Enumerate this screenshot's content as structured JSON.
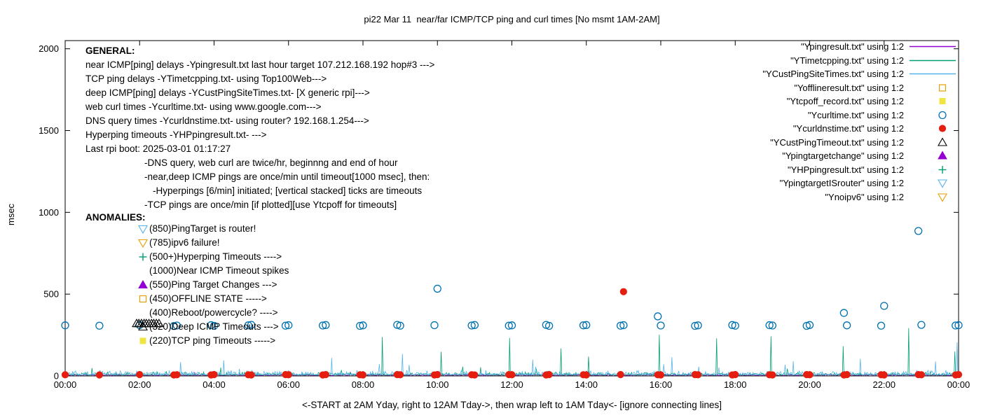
{
  "title": "pi22 Mar 11  near/far ICMP/TCP ping and curl times [No msmt 1AM-2AM]",
  "ylabel": "msec",
  "xlabel": "<-START at 2AM Yday, right to 12AM Tday->, then wrap left to 1AM Tday<- [ignore connecting lines]",
  "general": {
    "heading": "GENERAL:",
    "lines": [
      {
        "text": "near ICMP[ping] delays -Ypingresult.txt last hour target 107.212.168.192 hop#3 --->",
        "indent": 0
      },
      {
        "text": "TCP ping delays -YTimetcpping.txt- using Top100Web--->",
        "indent": 0
      },
      {
        "text": "deep ICMP[ping] delays -YCustPingSiteTimes.txt- [X generic rpi]--->",
        "indent": 0
      },
      {
        "text": "web curl times -Ycurltime.txt- using www.google.com--->",
        "indent": 0
      },
      {
        "text": "DNS query times -Ycurldnstime.txt- using router? 192.168.1.254--->",
        "indent": 0
      },
      {
        "text": "Hyperping timeouts -YHPpingresult.txt- --->",
        "indent": 0
      },
      {
        "text": "Last rpi boot: 2025-03-01 01:17:27",
        "indent": 0
      },
      {
        "text": "-DNS query, web curl are twice/hr, beginnng and end of hour",
        "indent": 1
      },
      {
        "text": "-near,deep ICMP pings are once/min until timeout[1000 msec], then:",
        "indent": 1
      },
      {
        "text": "-Hyperpings [6/min] initiated; [vertical stacked] ticks are timeouts",
        "indent": 2
      },
      {
        "text": "-TCP pings are once/min [if plotted][use Ytcpoff for timeouts]",
        "indent": 1
      }
    ]
  },
  "anomalies": {
    "heading": "ANOMALIES:",
    "items": [
      {
        "marker": "triangle-down-open",
        "color": "#56B4E9",
        "label": "(850)PingTarget is router!"
      },
      {
        "marker": "triangle-down-open",
        "color": "#E69F00",
        "label": "(785)ipv6 failure!"
      },
      {
        "marker": "plus",
        "color": "#009E73",
        "label": "(500+)Hyperping Timeouts ---->"
      },
      {
        "marker": "none",
        "color": "",
        "label": "(1000)Near ICMP Timeout spikes"
      },
      {
        "marker": "triangle-up-filled",
        "color": "#9400D3",
        "label": "(550)Ping Target Changes --->"
      },
      {
        "marker": "square-open",
        "color": "#E69F00",
        "label": "(450)OFFLINE STATE ----->"
      },
      {
        "marker": "none",
        "color": "",
        "label": "(400)Reboot/powercycle? ---->"
      },
      {
        "marker": "triangle-up-open",
        "color": "#000000",
        "label": "(320)Deep ICMP Timeouts --->"
      },
      {
        "marker": "square-filled",
        "color": "#F0E442",
        "label": "(220)TCP ping Timeouts ----->"
      }
    ]
  },
  "legend": {
    "items": [
      {
        "label": "\"Ypingresult.txt\" using 1:2",
        "sample": "line",
        "color": "#9400D3"
      },
      {
        "label": "\"YTimetcpping.txt\" using 1:2",
        "sample": "line",
        "color": "#009E73"
      },
      {
        "label": "\"YCustPingSiteTimes.txt\" using 1:2",
        "sample": "line",
        "color": "#56B4E9"
      },
      {
        "label": "\"Yofflineresult.txt\" using 1:2",
        "sample": "square-open",
        "color": "#E69F00"
      },
      {
        "label": "\"Ytcpoff_record.txt\" using 1:2",
        "sample": "square-filled",
        "color": "#F0E442"
      },
      {
        "label": "\"Ycurltime.txt\" using 1:2",
        "sample": "circle-open",
        "color": "#0072B2"
      },
      {
        "label": "\"Ycurldnstime.txt\" using 1:2",
        "sample": "circle-filled",
        "color": "#E51E10"
      },
      {
        "label": "\"YCustPingTimeout.txt\" using 1:2",
        "sample": "triangle-up-open",
        "color": "#000000"
      },
      {
        "label": "\"Ypingtargetchange\" using 1:2",
        "sample": "triangle-up-filled",
        "color": "#9400D3"
      },
      {
        "label": "\"YHPpingresult.txt\" using 1:2",
        "sample": "plus",
        "color": "#009E73"
      },
      {
        "label": "\"YpingtargetISrouter\" using 1:2",
        "sample": "triangle-down-open",
        "color": "#56B4E9"
      },
      {
        "label": "\"Ynoipv6\" using 1:2",
        "sample": "triangle-down-open",
        "color": "#E69F00"
      }
    ]
  },
  "chart_data": {
    "type": "line",
    "x_range": [
      0,
      24
    ],
    "ylim": [
      0,
      2050
    ],
    "yticks": [
      0,
      500,
      1000,
      1500,
      2000
    ],
    "xticks": [
      {
        "h": 0,
        "label": "00:00"
      },
      {
        "h": 2,
        "label": "02:00"
      },
      {
        "h": 4,
        "label": "04:00"
      },
      {
        "h": 6,
        "label": "06:00"
      },
      {
        "h": 8,
        "label": "08:00"
      },
      {
        "h": 10,
        "label": "10:00"
      },
      {
        "h": 12,
        "label": "12:00"
      },
      {
        "h": 14,
        "label": "14:00"
      },
      {
        "h": 16,
        "label": "16:00"
      },
      {
        "h": 18,
        "label": "18:00"
      },
      {
        "h": 20,
        "label": "20:00"
      },
      {
        "h": 22,
        "label": "22:00"
      },
      {
        "h": 24,
        "label": "00:00"
      }
    ],
    "grid": false,
    "legend_position": "top-right",
    "series": [
      {
        "name": "Ypingresult.txt",
        "type": "line",
        "color": "#9400D3",
        "baseline_msec": 3,
        "noise_amplitude_msec": 9,
        "spikes": []
      },
      {
        "name": "YTimetcpping.txt",
        "type": "line",
        "color": "#009E73",
        "baseline_msec": 4,
        "noise_amplitude_msec": 22,
        "spikes": [
          [
            8.52,
            238
          ],
          [
            10.1,
            148
          ],
          [
            11.95,
            232
          ],
          [
            13.32,
            168
          ],
          [
            14.05,
            118
          ],
          [
            15.95,
            252
          ],
          [
            17.5,
            230
          ],
          [
            18.95,
            242
          ],
          [
            20.9,
            182
          ],
          [
            22.65,
            292
          ],
          [
            23.9,
            150
          ]
        ]
      },
      {
        "name": "YCustPingSiteTimes.txt",
        "type": "line",
        "color": "#56B4E9",
        "baseline_msec": 5,
        "noise_amplitude_msec": 30,
        "spikes": [
          [
            3.1,
            85
          ],
          [
            4.25,
            95
          ],
          [
            7.15,
            110
          ],
          [
            9.05,
            135
          ],
          [
            12.55,
            100
          ],
          [
            16.3,
            115
          ],
          [
            19.55,
            90
          ],
          [
            21.35,
            105
          ],
          [
            23.95,
            205
          ]
        ]
      },
      {
        "name": "Yofflineresult.txt",
        "type": "points",
        "marker": "square-open",
        "color": "#E69F00",
        "points": []
      },
      {
        "name": "Ytcpoff_record.txt",
        "type": "points",
        "marker": "square-filled",
        "color": "#F0E442",
        "points": []
      },
      {
        "name": "Ycurltime.txt",
        "type": "points",
        "marker": "circle-open",
        "color": "#0072B2",
        "points": [
          [
            0,
            309
          ],
          [
            0.92,
            307
          ],
          [
            2,
            311
          ],
          [
            2.92,
            305
          ],
          [
            3,
            308
          ],
          [
            3.92,
            310
          ],
          [
            4,
            306
          ],
          [
            4.92,
            309
          ],
          [
            5,
            312
          ],
          [
            5.92,
            307
          ],
          [
            6,
            310
          ],
          [
            6.92,
            308
          ],
          [
            7,
            311
          ],
          [
            7.92,
            306
          ],
          [
            8,
            309
          ],
          [
            8.92,
            312
          ],
          [
            9,
            307
          ],
          [
            9.92,
            310
          ],
          [
            10,
            533
          ],
          [
            10.92,
            308
          ],
          [
            11,
            311
          ],
          [
            11.92,
            307
          ],
          [
            12,
            309
          ],
          [
            12.92,
            312
          ],
          [
            13,
            306
          ],
          [
            13.92,
            309
          ],
          [
            14,
            311
          ],
          [
            14.92,
            307
          ],
          [
            15,
            310
          ],
          [
            15.92,
            364
          ],
          [
            16,
            308
          ],
          [
            16.92,
            306
          ],
          [
            17,
            309
          ],
          [
            17.92,
            311
          ],
          [
            18,
            307
          ],
          [
            18.92,
            310
          ],
          [
            19,
            308
          ],
          [
            19.92,
            306
          ],
          [
            20,
            311
          ],
          [
            20.92,
            385
          ],
          [
            21,
            309
          ],
          [
            21.92,
            307
          ],
          [
            22,
            428
          ],
          [
            22.92,
            886
          ],
          [
            23,
            312
          ],
          [
            23.92,
            308
          ],
          [
            24,
            310
          ]
        ]
      },
      {
        "name": "Ycurldnstime.txt",
        "type": "points",
        "marker": "circle-filled",
        "color": "#E51E10",
        "points": [
          [
            0,
            7
          ],
          [
            0.92,
            6
          ],
          [
            2,
            8
          ],
          [
            2.92,
            6
          ],
          [
            3,
            7
          ],
          [
            3.92,
            6
          ],
          [
            4,
            8
          ],
          [
            4.92,
            7
          ],
          [
            5,
            6
          ],
          [
            5.92,
            8
          ],
          [
            6,
            7
          ],
          [
            6.92,
            6
          ],
          [
            7,
            8
          ],
          [
            7.92,
            7
          ],
          [
            8,
            6
          ],
          [
            8.92,
            8
          ],
          [
            9,
            7
          ],
          [
            9.92,
            6
          ],
          [
            10,
            8
          ],
          [
            10.92,
            7
          ],
          [
            11,
            6
          ],
          [
            11.92,
            8
          ],
          [
            12,
            7
          ],
          [
            12.92,
            6
          ],
          [
            13,
            8
          ],
          [
            13.92,
            7
          ],
          [
            14,
            6
          ],
          [
            14.92,
            8
          ],
          [
            15,
            515
          ],
          [
            15.92,
            7
          ],
          [
            16,
            6
          ],
          [
            16.92,
            8
          ],
          [
            17,
            7
          ],
          [
            17.92,
            6
          ],
          [
            18,
            8
          ],
          [
            18.92,
            7
          ],
          [
            19,
            6
          ],
          [
            19.92,
            8
          ],
          [
            20,
            7
          ],
          [
            20.92,
            6
          ],
          [
            21,
            8
          ],
          [
            21.92,
            7
          ],
          [
            22,
            6
          ],
          [
            22.92,
            8
          ],
          [
            23,
            7
          ],
          [
            23.92,
            6
          ],
          [
            24,
            8
          ]
        ]
      },
      {
        "name": "YCustPingTimeout.txt",
        "type": "points",
        "marker": "triangle-up-open",
        "color": "#000000",
        "points": [
          [
            1.92,
            320
          ],
          [
            1.98,
            320
          ],
          [
            2.05,
            320
          ],
          [
            2.12,
            320
          ],
          [
            2.18,
            320
          ],
          [
            2.25,
            320
          ],
          [
            2.32,
            320
          ],
          [
            2.38,
            320
          ],
          [
            2.45,
            320
          ],
          [
            2.52,
            320
          ]
        ]
      },
      {
        "name": "Ypingtargetchange",
        "type": "points",
        "marker": "triangle-up-filled",
        "color": "#9400D3",
        "points": []
      },
      {
        "name": "YHPpingresult.txt",
        "type": "points",
        "marker": "plus",
        "color": "#009E73",
        "points": []
      },
      {
        "name": "YpingtargetISrouter",
        "type": "points",
        "marker": "triangle-down-open",
        "color": "#56B4E9",
        "points": []
      },
      {
        "name": "Ynoipv6",
        "type": "points",
        "marker": "triangle-down-open",
        "color": "#E69F00",
        "points": []
      }
    ]
  }
}
